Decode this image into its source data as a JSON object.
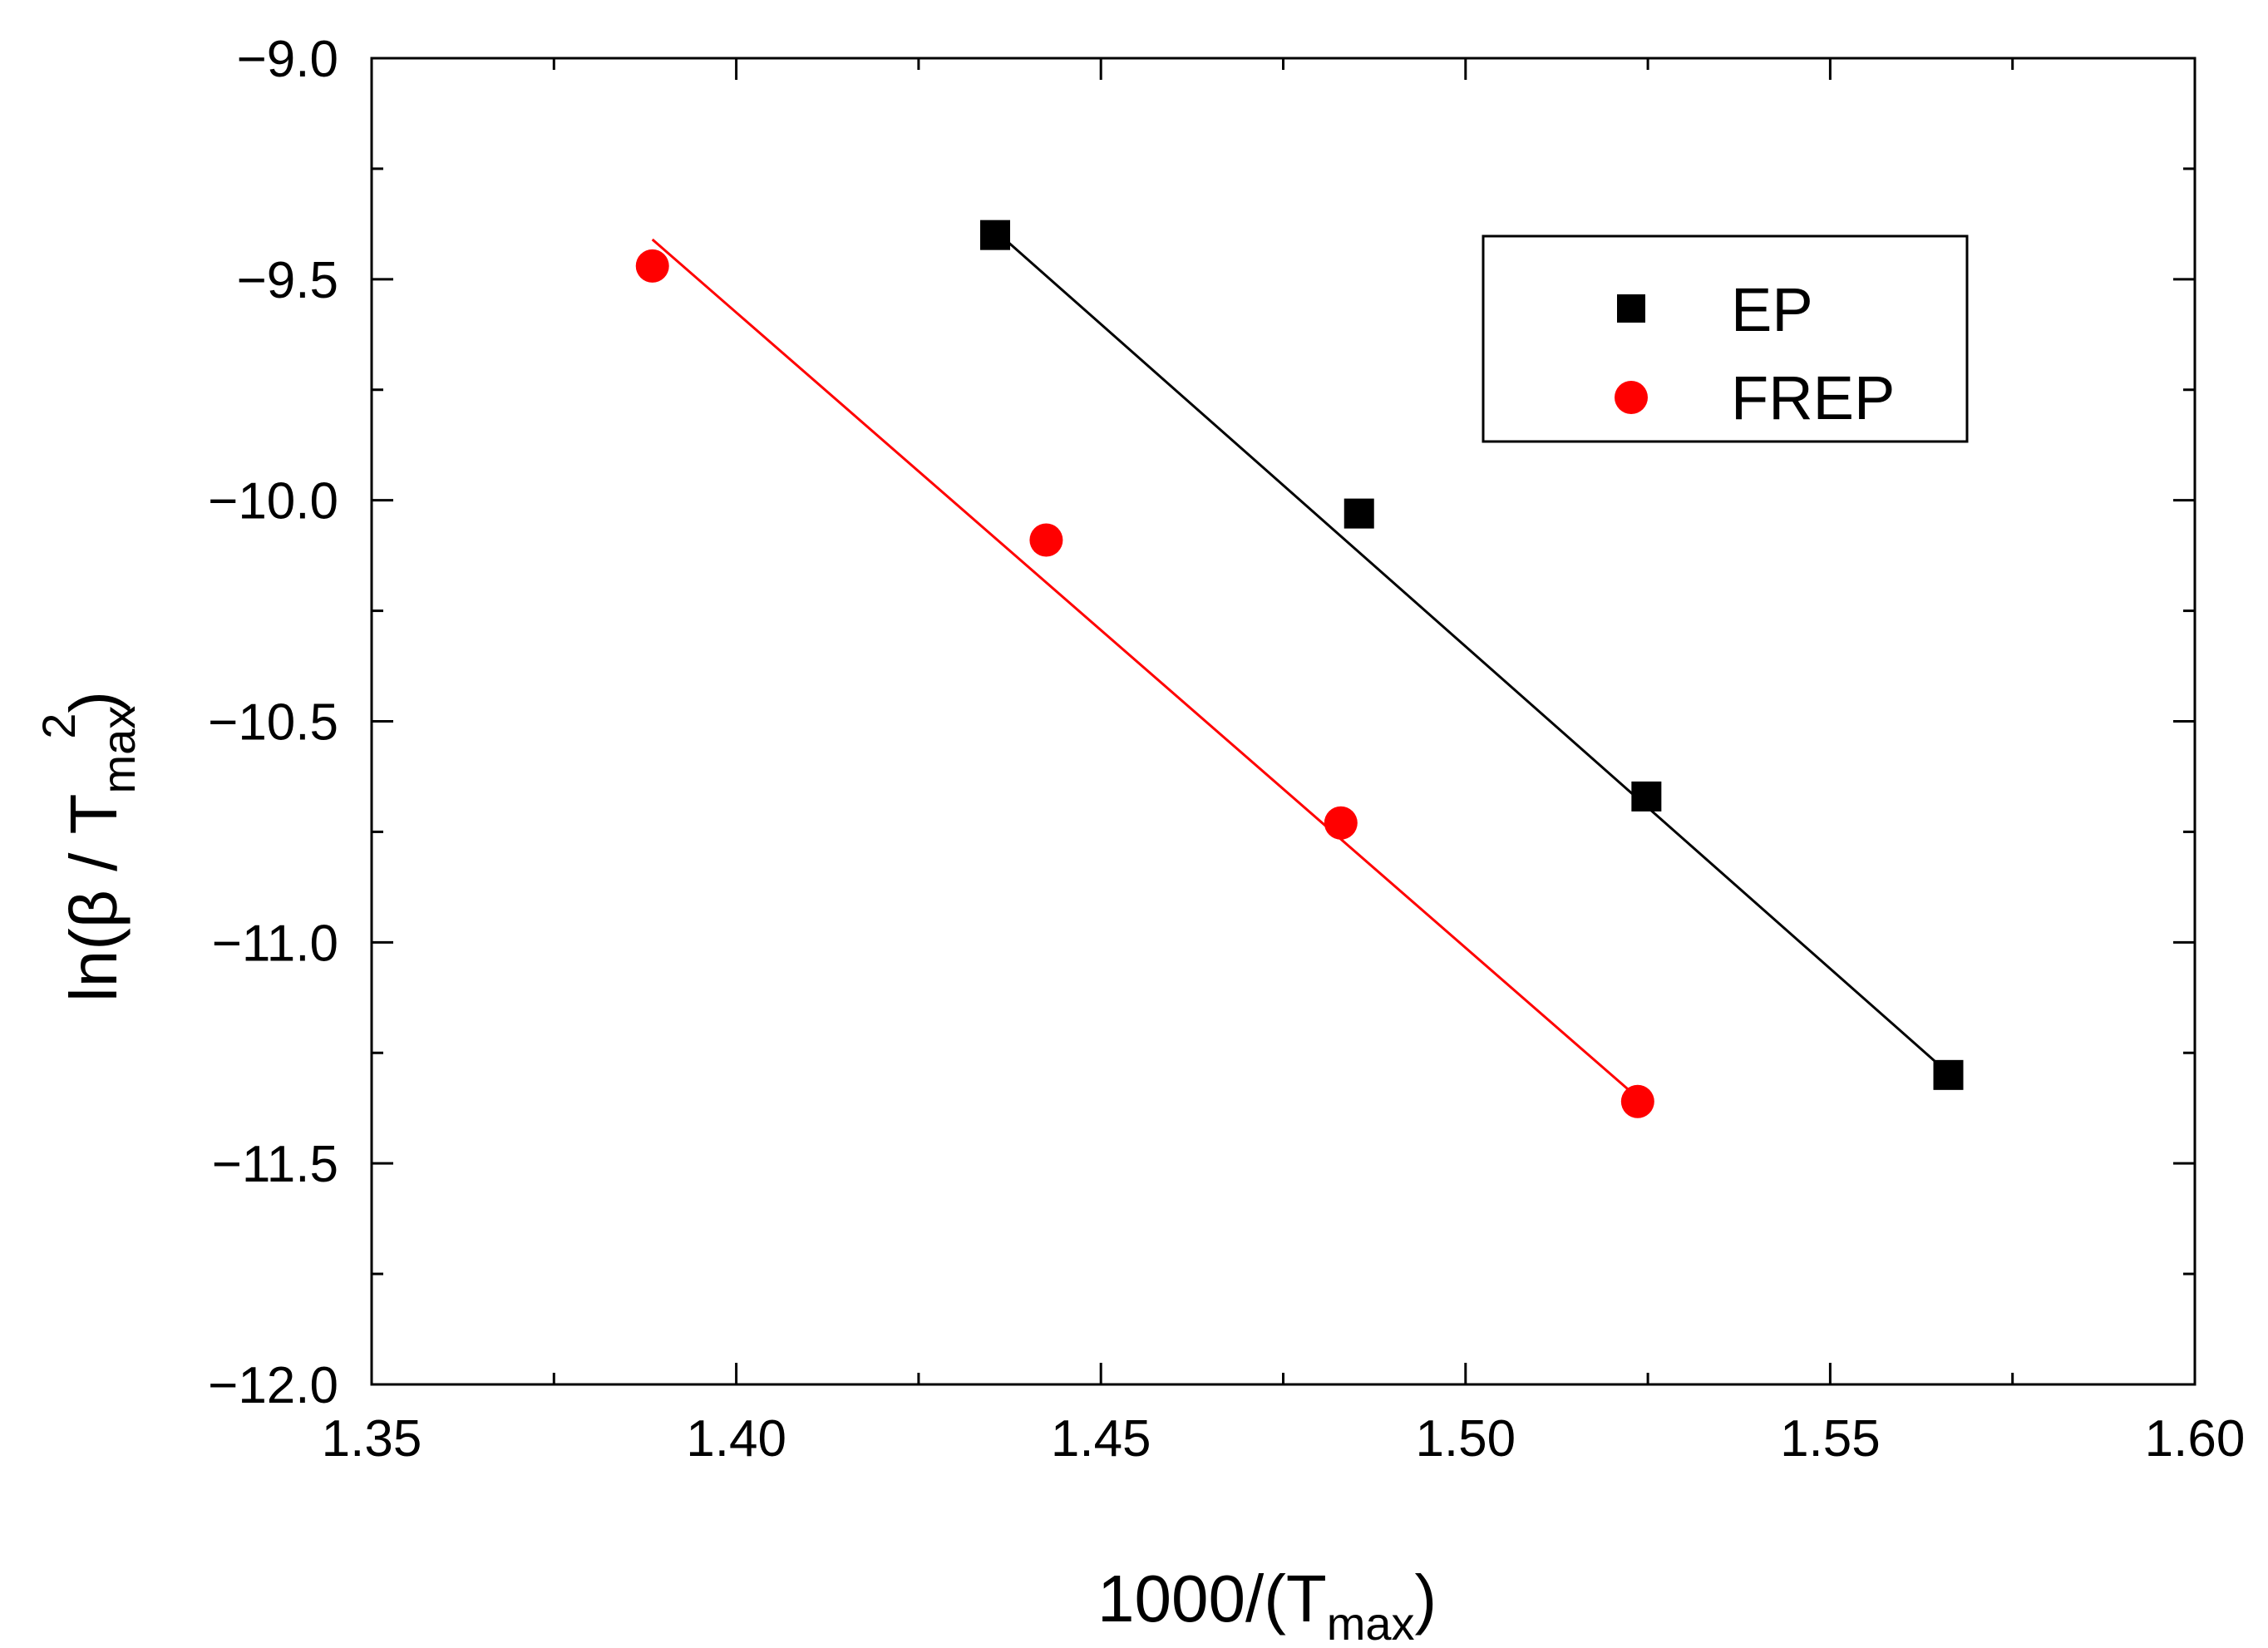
{
  "chart_data": {
    "type": "scatter",
    "xlabel": {
      "main": "1000/(T",
      "sub": "max",
      "tail": ")"
    },
    "ylabel": {
      "main": "ln(β / T",
      "sub": "max",
      "sup": "2",
      "tail": ")"
    },
    "xlim": [
      1.35,
      1.6
    ],
    "ylim": [
      -12.0,
      -9.0
    ],
    "x_ticks": [
      1.35,
      1.4,
      1.45,
      1.5,
      1.55,
      1.6
    ],
    "y_ticks": [
      -9.0,
      -9.5,
      -10.0,
      -10.5,
      -11.0,
      -11.5,
      -12.0
    ],
    "x_tick_labels": [
      "1.35",
      "1.40",
      "1.45",
      "1.50",
      "1.55",
      "1.60"
    ],
    "y_tick_labels": [
      "−9.0",
      "−9.5",
      "−10.0",
      "−10.5",
      "−11.0",
      "−11.5",
      "−12.0"
    ],
    "grid": false,
    "legend_position": "top-right",
    "series": [
      {
        "name": "EP",
        "marker": "square",
        "color": "#000000",
        "x": [
          1.4355,
          1.4854,
          1.5248,
          1.5662
        ],
        "y": [
          -9.4,
          -10.03,
          -10.67,
          -11.3
        ],
        "fit": {
          "x": [
            1.4348,
            1.5658
          ],
          "y": [
            -9.38,
            -11.29
          ]
        }
      },
      {
        "name": "FREP",
        "marker": "circle",
        "color": "#ff0000",
        "x": [
          1.3885,
          1.4425,
          1.4829,
          1.5236
        ],
        "y": [
          -9.47,
          -10.09,
          -10.73,
          -11.36
        ],
        "fit": {
          "x": [
            1.3885,
            1.5235
          ],
          "y": [
            -9.41,
            -11.35
          ]
        }
      }
    ]
  }
}
